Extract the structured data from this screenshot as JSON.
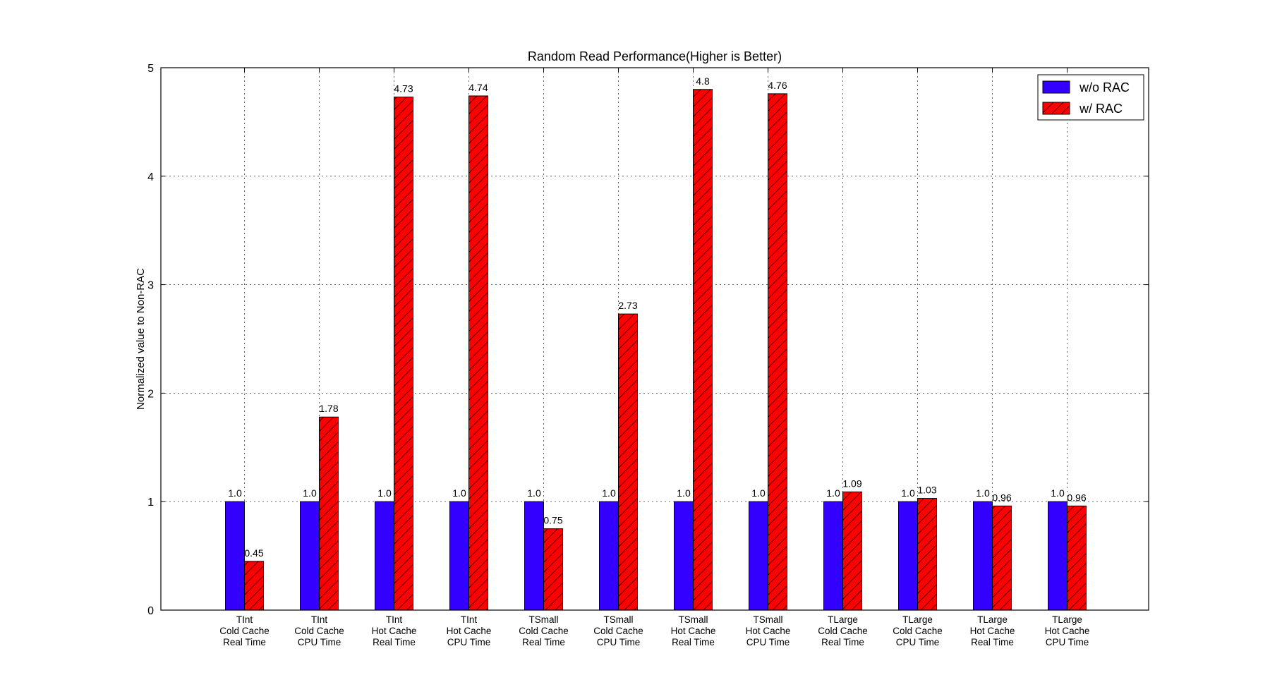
{
  "chart_data": {
    "type": "bar",
    "title": "Random Read Performance(Higher is Better)",
    "xlabel": "",
    "ylabel": "Normalized value to Non-RAC",
    "ylim": [
      0,
      5
    ],
    "yticks": [
      0,
      1,
      2,
      3,
      4,
      5
    ],
    "grid": true,
    "legend_position": "top-right",
    "categories": [
      [
        "TInt",
        "Cold Cache",
        "Real Time"
      ],
      [
        "TInt",
        "Cold Cache",
        "CPU Time"
      ],
      [
        "TInt",
        "Hot Cache",
        "Real Time"
      ],
      [
        "TInt",
        "Hot Cache",
        "CPU Time"
      ],
      [
        "TSmall",
        "Cold Cache",
        "Real Time"
      ],
      [
        "TSmall",
        "Cold Cache",
        "CPU Time"
      ],
      [
        "TSmall",
        "Hot Cache",
        "Real Time"
      ],
      [
        "TSmall",
        "Hot Cache",
        "CPU Time"
      ],
      [
        "TLarge",
        "Cold Cache",
        "Real Time"
      ],
      [
        "TLarge",
        "Cold Cache",
        "CPU Time"
      ],
      [
        "TLarge",
        "Hot Cache",
        "Real Time"
      ],
      [
        "TLarge",
        "Hot Cache",
        "CPU Time"
      ]
    ],
    "series": [
      {
        "name": "w/o RAC",
        "color": "#3300ff",
        "pattern": "solid",
        "values": [
          1.0,
          1.0,
          1.0,
          1.0,
          1.0,
          1.0,
          1.0,
          1.0,
          1.0,
          1.0,
          1.0,
          1.0
        ],
        "labels": [
          "1.0",
          "1.0",
          "1.0",
          "1.0",
          "1.0",
          "1.0",
          "1.0",
          "1.0",
          "1.0",
          "1.0",
          "1.0",
          "1.0"
        ]
      },
      {
        "name": "w/ RAC",
        "color": "#ff0000",
        "pattern": "hatched",
        "values": [
          0.45,
          1.78,
          4.73,
          4.74,
          0.75,
          2.73,
          4.8,
          4.76,
          1.09,
          1.03,
          0.96,
          0.96
        ],
        "labels": [
          "0.45",
          "1.78",
          "4.73",
          "4.74",
          "0.75",
          "2.73",
          "4.8",
          "4.76",
          "1.09",
          "1.03",
          "0.96",
          "0.96"
        ]
      }
    ]
  }
}
